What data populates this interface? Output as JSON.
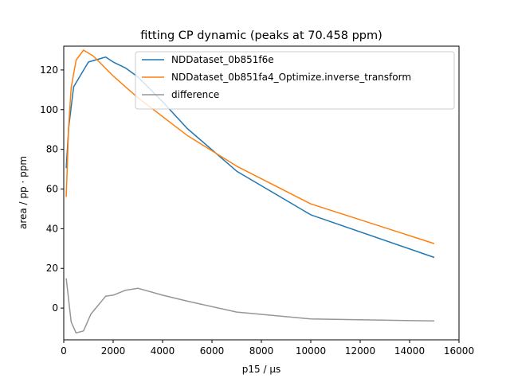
{
  "chart_data": {
    "type": "line",
    "title": "fitting CP dynamic (peaks at 70.458 ppm)",
    "xlabel": "p15 / µs",
    "ylabel": "area / pp · ppm",
    "xlim": [
      0,
      16000
    ],
    "ylim": [
      -16,
      132
    ],
    "xticks": [
      0,
      2000,
      4000,
      6000,
      8000,
      10000,
      12000,
      14000,
      16000
    ],
    "yticks": [
      0,
      20,
      40,
      60,
      80,
      100,
      120
    ],
    "grid": false,
    "legend_position": "top-right",
    "series": [
      {
        "name": "NDDataset_0b851f6e",
        "color": "#1f77b4",
        "x": [
          100,
          200,
          400,
          1000,
          1700,
          2000,
          2500,
          3000,
          4000,
          5000,
          7000,
          10000,
          15000
        ],
        "y": [
          70.5,
          91,
          111.5,
          124,
          126.5,
          124,
          121,
          116.5,
          104,
          90.5,
          69,
          47,
          25.5
        ]
      },
      {
        "name": "NDDataset_0b851fa4_Optimize.inverse_transform",
        "color": "#ff7f0e",
        "x": [
          100,
          200,
          300,
          500,
          800,
          1200,
          2000,
          3000,
          5000,
          7000,
          10000,
          15000
        ],
        "y": [
          56,
          92,
          111,
          125,
          130,
          127,
          117,
          106,
          87,
          71.5,
          52.5,
          32.5
        ]
      },
      {
        "name": "difference",
        "color": "#969696",
        "x": [
          100,
          300,
          500,
          800,
          1100,
          1700,
          2000,
          2500,
          3000,
          4000,
          5000,
          7000,
          10000,
          15000
        ],
        "y": [
          15,
          -7,
          -12.5,
          -11.5,
          -3,
          6,
          6.5,
          9,
          10,
          6.5,
          3.5,
          -2,
          -5.5,
          -6.5
        ]
      }
    ]
  }
}
